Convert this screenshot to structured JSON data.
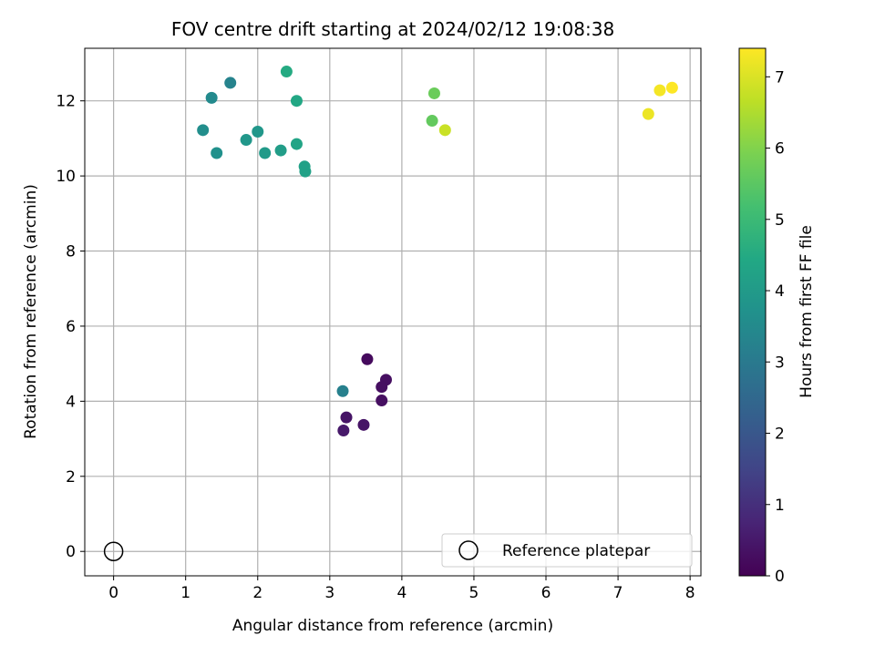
{
  "chart_data": {
    "type": "scatter",
    "title": "FOV centre drift starting at 2024/02/12 19:08:38",
    "xlabel": "Angular distance from reference (arcmin)",
    "ylabel": "Rotation from reference (arcmin)",
    "xlim": [
      -0.4,
      8.15
    ],
    "ylim": [
      -0.65,
      13.4
    ],
    "xticks": [
      0,
      1,
      2,
      3,
      4,
      5,
      6,
      7,
      8
    ],
    "xtick_labels": [
      "0",
      "1",
      "2",
      "3",
      "4",
      "5",
      "6",
      "7",
      "8"
    ],
    "yticks": [
      0,
      2,
      4,
      6,
      8,
      10,
      12
    ],
    "ytick_labels": [
      "0",
      "2",
      "4",
      "6",
      "8",
      "10",
      "12"
    ],
    "grid": true,
    "colormap": "viridis",
    "colorbar": {
      "label": "Hours from first FF file",
      "range": [
        0,
        7.4
      ],
      "ticks": [
        0,
        1,
        2,
        3,
        4,
        5,
        6,
        7
      ],
      "tick_labels": [
        "0",
        "1",
        "2",
        "3",
        "4",
        "5",
        "6",
        "7"
      ]
    },
    "points": [
      {
        "x": 3.52,
        "y": 5.12,
        "hours": 0.2
      },
      {
        "x": 3.78,
        "y": 4.57,
        "hours": 0.3
      },
      {
        "x": 3.72,
        "y": 4.38,
        "hours": 0.3
      },
      {
        "x": 3.72,
        "y": 4.02,
        "hours": 0.3
      },
      {
        "x": 3.23,
        "y": 3.57,
        "hours": 0.4
      },
      {
        "x": 3.47,
        "y": 3.37,
        "hours": 0.4
      },
      {
        "x": 3.19,
        "y": 3.22,
        "hours": 0.5
      },
      {
        "x": 3.18,
        "y": 4.27,
        "hours": 3.2
      },
      {
        "x": 1.62,
        "y": 12.48,
        "hours": 3.3
      },
      {
        "x": 1.36,
        "y": 12.08,
        "hours": 3.5
      },
      {
        "x": 1.24,
        "y": 11.22,
        "hours": 3.6
      },
      {
        "x": 1.43,
        "y": 10.61,
        "hours": 3.7
      },
      {
        "x": 2.0,
        "y": 11.18,
        "hours": 3.9
      },
      {
        "x": 1.84,
        "y": 10.96,
        "hours": 3.9
      },
      {
        "x": 2.1,
        "y": 10.61,
        "hours": 4.0
      },
      {
        "x": 2.32,
        "y": 10.68,
        "hours": 4.1
      },
      {
        "x": 2.66,
        "y": 10.12,
        "hours": 4.2
      },
      {
        "x": 2.65,
        "y": 10.25,
        "hours": 4.2
      },
      {
        "x": 2.54,
        "y": 10.85,
        "hours": 4.3
      },
      {
        "x": 2.54,
        "y": 12.0,
        "hours": 4.4
      },
      {
        "x": 2.4,
        "y": 12.78,
        "hours": 4.5
      },
      {
        "x": 4.42,
        "y": 11.47,
        "hours": 5.6
      },
      {
        "x": 4.45,
        "y": 12.2,
        "hours": 5.7
      },
      {
        "x": 4.6,
        "y": 11.22,
        "hours": 6.8
      },
      {
        "x": 7.42,
        "y": 11.65,
        "hours": 7.2
      },
      {
        "x": 7.58,
        "y": 12.28,
        "hours": 7.3
      },
      {
        "x": 7.75,
        "y": 12.35,
        "hours": 7.4
      }
    ],
    "reference": {
      "x": 0,
      "y": 0,
      "label": "Reference platepar"
    },
    "legend": {
      "placement": "lower right",
      "entries": [
        "Reference platepar"
      ]
    }
  }
}
